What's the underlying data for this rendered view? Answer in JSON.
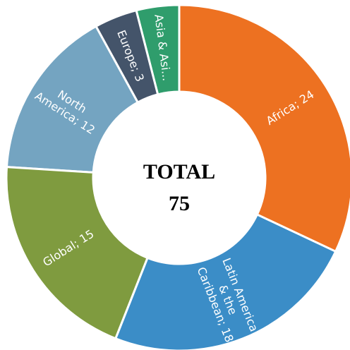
{
  "chart_data": {
    "type": "donut",
    "value_labels": [
      "Africa; 24",
      "Latin America & the Caribbean; 18",
      "Global; 15",
      "North America; 12",
      "Europe; 3",
      "Asia & Asi..."
    ],
    "values": [
      24,
      18,
      15,
      12,
      3,
      3
    ],
    "colors": [
      "#ed7121",
      "#3b8dc7",
      "#7f9b3f",
      "#74a4c1",
      "#44546a",
      "#2f9d6c"
    ],
    "center_title": "TOTAL",
    "center_value": 75
  }
}
